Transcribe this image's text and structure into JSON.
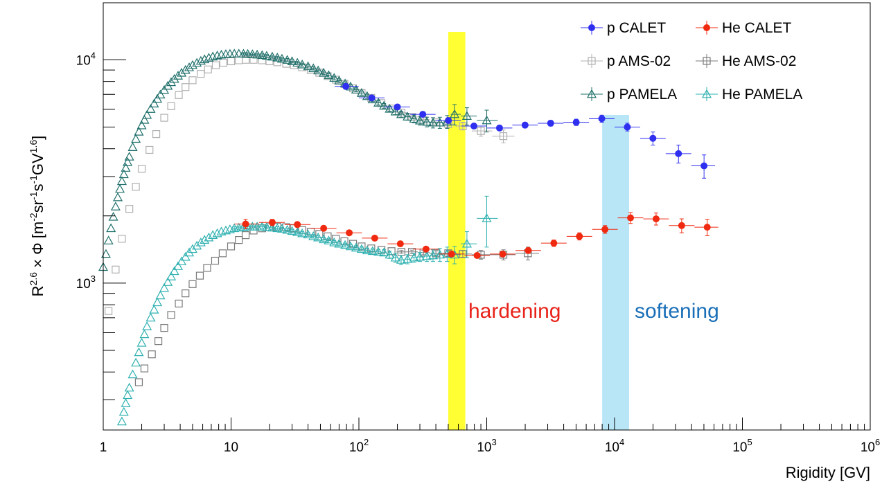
{
  "chart_data": {
    "type": "scatter",
    "title": "",
    "xlabel": "Rigidity [GV]",
    "ylabel": {
      "base": "R",
      "exp1": "2.6",
      "mid": " × Φ [m",
      "exp2": "-2",
      "s1": "sr",
      "exp3": "-1",
      "s2": "s",
      "exp4": "-1",
      "s3": "GV",
      "exp5": "1.6",
      "end": "]"
    },
    "x_scale": "log",
    "y_scale": "log",
    "xlim": [
      1,
      1000000
    ],
    "ylim": [
      220,
      18000
    ],
    "grid": false,
    "legend_position": "top-right",
    "x_tick_labels": [
      {
        "value": 1,
        "base": "1",
        "exp": ""
      },
      {
        "value": 10,
        "base": "10",
        "exp": ""
      },
      {
        "value": 100,
        "base": "10",
        "exp": "2"
      },
      {
        "value": 1000,
        "base": "10",
        "exp": "3"
      },
      {
        "value": 10000,
        "base": "10",
        "exp": "4"
      },
      {
        "value": 100000,
        "base": "10",
        "exp": "5"
      },
      {
        "value": 1000000,
        "base": "10",
        "exp": "6"
      }
    ],
    "y_tick_labels": [
      {
        "value": 1000,
        "base": "10",
        "exp": "3"
      },
      {
        "value": 10000,
        "base": "10",
        "exp": "4"
      }
    ],
    "bands": [
      {
        "x_range": [
          500,
          680
        ],
        "color": "#ffff33"
      },
      {
        "x_range": [
          8000,
          13000
        ],
        "color": "#b8e6f7"
      }
    ],
    "annotations": [
      {
        "text": "hardening",
        "x": 720,
        "y": 720,
        "color": "#e8231a"
      },
      {
        "text": "softening",
        "x": 16000,
        "y": 720,
        "color": "#1a6fb8"
      }
    ],
    "series": [
      {
        "name": "p CALET",
        "marker": "filled-circle",
        "color": "#2f2ff0",
        "x": [
          79,
          126,
          200,
          316,
          501,
          794,
          1259,
          1995,
          3162,
          5012,
          7943,
          12589,
          19953,
          31623,
          50119
        ],
        "y": [
          7600,
          6750,
          6150,
          5700,
          5350,
          5050,
          4950,
          5100,
          5200,
          5250,
          5450,
          5000,
          4450,
          3800,
          3350
        ],
        "yerr": [
          200,
          180,
          160,
          150,
          140,
          130,
          130,
          140,
          150,
          170,
          200,
          200,
          300,
          350,
          400
        ]
      },
      {
        "name": "He CALET",
        "marker": "filled-circle",
        "color": "#f02a10",
        "x": [
          13,
          21,
          33,
          53,
          84,
          133,
          211,
          335,
          531,
          841,
          1334,
          2113,
          3350,
          5309,
          8414,
          13335,
          21135,
          33497,
          53088
        ],
        "y": [
          1840,
          1870,
          1830,
          1760,
          1680,
          1590,
          1500,
          1420,
          1350,
          1330,
          1350,
          1400,
          1510,
          1620,
          1740,
          1960,
          1940,
          1810,
          1780
        ],
        "yerr": [
          90,
          60,
          50,
          40,
          35,
          30,
          30,
          30,
          30,
          30,
          35,
          40,
          50,
          60,
          70,
          110,
          120,
          130,
          150
        ]
      },
      {
        "name": "p AMS-02",
        "marker": "open-square",
        "color": "#b0b0b0",
        "x": [
          1.1,
          1.25,
          1.4,
          1.6,
          1.8,
          2.0,
          2.3,
          2.6,
          3.0,
          3.4,
          3.9,
          4.4,
          5.0,
          5.8,
          6.6,
          7.6,
          8.7,
          10,
          11.5,
          13,
          15,
          17.5,
          20,
          23,
          27,
          31,
          36,
          42,
          49,
          57,
          66,
          77,
          90,
          105,
          125,
          150,
          180,
          215,
          260,
          320,
          400,
          500,
          650,
          900,
          1350
        ],
        "y": [
          750,
          1150,
          1580,
          2150,
          2700,
          3250,
          3950,
          4650,
          5500,
          6200,
          6950,
          7550,
          8100,
          8650,
          9050,
          9450,
          9700,
          9850,
          9950,
          10000,
          10000,
          9950,
          9850,
          9750,
          9600,
          9450,
          9250,
          9000,
          8750,
          8450,
          8150,
          7800,
          7450,
          7100,
          6750,
          6400,
          6050,
          5800,
          5550,
          5400,
          5250,
          5150,
          5050,
          4800,
          4550
        ],
        "yerr": [
          0,
          0,
          0,
          0,
          0,
          0,
          0,
          0,
          0,
          0,
          0,
          0,
          0,
          0,
          0,
          0,
          0,
          0,
          0,
          0,
          0,
          0,
          0,
          0,
          0,
          0,
          0,
          0,
          0,
          0,
          0,
          0,
          0,
          0,
          0,
          0,
          0,
          60,
          70,
          80,
          100,
          150,
          200,
          250,
          300
        ]
      },
      {
        "name": "He AMS-02",
        "marker": "open-square",
        "color": "#7a7a7a",
        "x": [
          1.9,
          2.1,
          2.4,
          2.7,
          3.0,
          3.4,
          3.9,
          4.4,
          5.0,
          5.7,
          6.5,
          7.5,
          8.6,
          10,
          11.5,
          13,
          15,
          17.5,
          20,
          23,
          27,
          31,
          36,
          42,
          49,
          57,
          66,
          77,
          90,
          105,
          125,
          150,
          180,
          215,
          260,
          320,
          400,
          500,
          650,
          900,
          1350,
          2100
        ],
        "y": [
          360,
          415,
          480,
          550,
          630,
          720,
          810,
          900,
          990,
          1080,
          1170,
          1260,
          1360,
          1460,
          1560,
          1640,
          1720,
          1760,
          1780,
          1790,
          1780,
          1760,
          1730,
          1700,
          1660,
          1620,
          1580,
          1540,
          1500,
          1460,
          1430,
          1410,
          1390,
          1380,
          1380,
          1370,
          1360,
          1360,
          1350,
          1340,
          1340,
          1360
        ],
        "yerr": [
          0,
          0,
          0,
          0,
          0,
          0,
          0,
          0,
          0,
          0,
          0,
          0,
          0,
          0,
          0,
          0,
          0,
          0,
          0,
          0,
          0,
          0,
          0,
          0,
          0,
          0,
          0,
          0,
          0,
          0,
          0,
          0,
          0,
          20,
          25,
          30,
          35,
          40,
          50,
          60,
          70,
          90
        ]
      },
      {
        "name": "p PAMELA",
        "marker": "open-triangle",
        "color": "#1f6f6a",
        "x": [
          1.0,
          1.05,
          1.1,
          1.15,
          1.2,
          1.25,
          1.3,
          1.35,
          1.4,
          1.45,
          1.5,
          1.55,
          1.6,
          1.7,
          1.8,
          1.9,
          2.0,
          2.1,
          2.2,
          2.35,
          2.5,
          2.65,
          2.8,
          3.0,
          3.2,
          3.4,
          3.6,
          3.85,
          4.1,
          4.4,
          4.7,
          5.0,
          5.4,
          5.8,
          6.2,
          6.7,
          7.2,
          7.8,
          8.4,
          9.1,
          9.8,
          10.6,
          11.5,
          12.5,
          13.5,
          14.7,
          16,
          17.5,
          19,
          21,
          23,
          25,
          27.5,
          30,
          33,
          36,
          40,
          44,
          48,
          53,
          58,
          64,
          70,
          78,
          86,
          95,
          105,
          116,
          128,
          142,
          157,
          174,
          193,
          214,
          240,
          270,
          300,
          340,
          380,
          430,
          490,
          560,
          700,
          1000
        ],
        "y": [
          1180,
          1350,
          1550,
          1760,
          1980,
          2200,
          2420,
          2640,
          2860,
          3070,
          3280,
          3480,
          3680,
          4060,
          4420,
          4760,
          5080,
          5380,
          5660,
          6020,
          6360,
          6680,
          6980,
          7320,
          7640,
          7930,
          8200,
          8480,
          8740,
          9000,
          9240,
          9460,
          9680,
          9880,
          10040,
          10200,
          10330,
          10440,
          10530,
          10590,
          10620,
          10640,
          10640,
          10630,
          10610,
          10580,
          10540,
          10480,
          10410,
          10320,
          10220,
          10100,
          9980,
          9840,
          9690,
          9520,
          9340,
          9150,
          8950,
          8740,
          8520,
          8290,
          8060,
          7820,
          7580,
          7340,
          7100,
          6870,
          6640,
          6420,
          6220,
          6030,
          5860,
          5700,
          5560,
          5440,
          5340,
          5270,
          5230,
          5230,
          5280,
          5700,
          5600,
          5350
        ],
        "yerr": [
          0,
          0,
          0,
          0,
          0,
          0,
          0,
          0,
          0,
          0,
          0,
          0,
          0,
          0,
          0,
          0,
          0,
          0,
          0,
          0,
          0,
          0,
          0,
          0,
          0,
          0,
          0,
          0,
          0,
          0,
          0,
          0,
          0,
          0,
          0,
          0,
          0,
          0,
          0,
          0,
          0,
          0,
          0,
          150,
          150,
          150,
          150,
          150,
          150,
          150,
          150,
          150,
          150,
          150,
          150,
          150,
          150,
          150,
          150,
          150,
          150,
          150,
          150,
          150,
          150,
          150,
          150,
          150,
          150,
          150,
          150,
          150,
          180,
          180,
          200,
          220,
          240,
          260,
          280,
          300,
          350,
          600,
          500,
          600
        ]
      },
      {
        "name": "He PAMELA",
        "marker": "open-triangle",
        "color": "#2fb0b0",
        "x": [
          1.4,
          1.45,
          1.5,
          1.55,
          1.6,
          1.7,
          1.8,
          1.9,
          2.0,
          2.1,
          2.2,
          2.35,
          2.5,
          2.65,
          2.8,
          3.0,
          3.2,
          3.4,
          3.6,
          3.85,
          4.1,
          4.4,
          4.7,
          5.0,
          5.4,
          5.8,
          6.2,
          6.7,
          7.2,
          7.8,
          8.4,
          9.1,
          9.8,
          10.6,
          11.5,
          12.5,
          13.5,
          14.7,
          16,
          17.5,
          19,
          21,
          23,
          25,
          27.5,
          30,
          33,
          36,
          40,
          44,
          48,
          53,
          58,
          64,
          70,
          78,
          86,
          95,
          105,
          116,
          128,
          142,
          157,
          174,
          193,
          214,
          240,
          270,
          300,
          340,
          380,
          430,
          490,
          560,
          700,
          1000
        ],
        "y": [
          240,
          265,
          290,
          315,
          340,
          390,
          440,
          490,
          540,
          590,
          640,
          700,
          760,
          820,
          880,
          950,
          1010,
          1070,
          1130,
          1190,
          1250,
          1310,
          1370,
          1420,
          1470,
          1520,
          1560,
          1600,
          1640,
          1670,
          1700,
          1720,
          1740,
          1760,
          1770,
          1780,
          1790,
          1790,
          1790,
          1790,
          1780,
          1770,
          1760,
          1750,
          1730,
          1710,
          1690,
          1670,
          1650,
          1620,
          1600,
          1570,
          1550,
          1520,
          1500,
          1480,
          1460,
          1440,
          1420,
          1400,
          1390,
          1380,
          1370,
          1340,
          1300,
          1270,
          1280,
          1300,
          1310,
          1320,
          1330,
          1340,
          1350,
          1340,
          1500,
          1950
        ],
        "yerr": [
          0,
          0,
          0,
          0,
          0,
          0,
          0,
          0,
          0,
          0,
          0,
          0,
          0,
          0,
          0,
          0,
          0,
          0,
          0,
          0,
          0,
          0,
          0,
          0,
          0,
          0,
          0,
          0,
          0,
          0,
          0,
          0,
          0,
          30,
          30,
          30,
          30,
          30,
          30,
          30,
          30,
          30,
          30,
          30,
          30,
          30,
          30,
          30,
          30,
          30,
          30,
          30,
          30,
          30,
          30,
          30,
          30,
          30,
          30,
          30,
          30,
          30,
          40,
          50,
          60,
          60,
          60,
          60,
          60,
          70,
          80,
          90,
          100,
          120,
          200,
          500
        ]
      }
    ]
  }
}
